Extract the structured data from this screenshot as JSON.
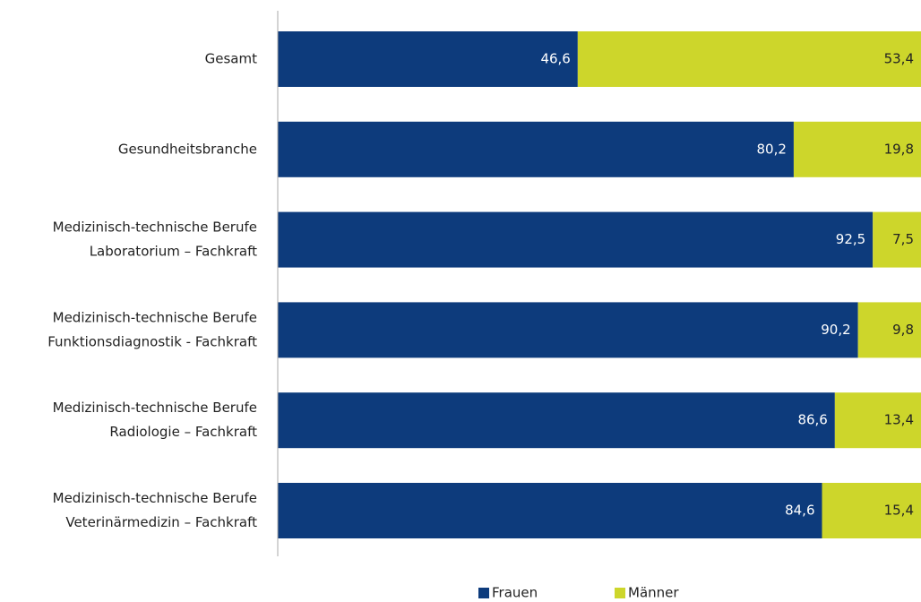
{
  "chart_data": {
    "type": "stacked-bar-horizontal",
    "categories": [
      [
        "Gesamt"
      ],
      [
        "Gesundheitsbranche"
      ],
      [
        "Medizinisch-technische Berufe",
        "Laboratorium – Fachkraft"
      ],
      [
        "Medizinisch-technische Berufe",
        "Funktionsdiagnostik - Fachkraft"
      ],
      [
        "Medizinisch-technische Berufe",
        "Radiologie – Fachkraft"
      ],
      [
        "Medizinisch-technische Berufe",
        "Veterinärmedizin – Fachkraft"
      ]
    ],
    "series": [
      {
        "name": "Frauen",
        "color": "#0d3b7c",
        "label_color": "#ffffff",
        "values": [
          46.6,
          80.2,
          92.5,
          90.2,
          86.6,
          84.6
        ],
        "value_labels": [
          "46,6",
          "80,2",
          "92,5",
          "90,2",
          "86,6",
          "84,6"
        ]
      },
      {
        "name": "Männer",
        "color": "#cdd62b",
        "label_color": "#222222",
        "values": [
          53.4,
          19.8,
          7.5,
          9.8,
          13.4,
          15.4
        ],
        "value_labels": [
          "53,4",
          "19,8",
          "7,5",
          "9,8",
          "13,4",
          "15,4"
        ]
      }
    ],
    "xlim": [
      0,
      100
    ]
  }
}
